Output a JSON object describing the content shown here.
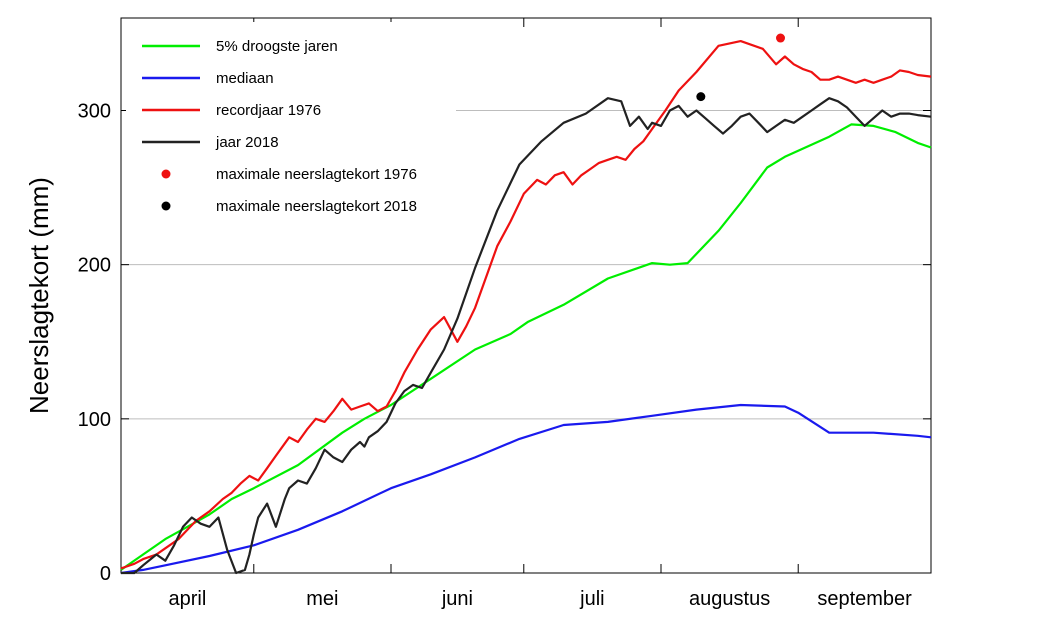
{
  "chart_data": {
    "type": "line",
    "title": "",
    "ylabel": "Neerslagtekort (mm)",
    "xlabel": "",
    "xlim": [
      0,
      183
    ],
    "ylim": [
      0,
      360
    ],
    "yticks": [
      0,
      100,
      200,
      300
    ],
    "grid": {
      "y": true,
      "x": false
    },
    "legend_placement": "top-left",
    "months": [
      {
        "label": "april",
        "start": 0,
        "end": 30
      },
      {
        "label": "mei",
        "start": 30,
        "end": 61
      },
      {
        "label": "juni",
        "start": 61,
        "end": 91
      },
      {
        "label": "juli",
        "start": 91,
        "end": 122
      },
      {
        "label": "augustus",
        "start": 122,
        "end": 153
      },
      {
        "label": "september",
        "start": 153,
        "end": 183
      }
    ],
    "series": [
      {
        "name": "5% droogste jaren",
        "color": "#00ee00",
        "x": [
          0,
          5,
          10,
          15,
          20,
          25,
          30,
          40,
          50,
          55,
          61,
          70,
          80,
          88,
          92,
          100,
          110,
          120,
          124,
          128,
          135,
          140,
          146,
          150,
          160,
          165,
          170,
          175,
          180,
          183
        ],
        "y": [
          2,
          12,
          22,
          30,
          38,
          48,
          55,
          70,
          91,
          100,
          109,
          126,
          145,
          155,
          163,
          174,
          191,
          201,
          200,
          201,
          222,
          240,
          263,
          270,
          283,
          291,
          290,
          286,
          279,
          276
        ]
      },
      {
        "name": "mediaan",
        "color": "#1a1aee",
        "x": [
          0,
          5,
          10,
          20,
          30,
          40,
          50,
          61,
          70,
          80,
          90,
          100,
          110,
          120,
          130,
          140,
          150,
          153,
          160,
          170,
          180,
          183
        ],
        "y": [
          0,
          2,
          5,
          11,
          18,
          28,
          40,
          55,
          64,
          75,
          87,
          96,
          98,
          102,
          106,
          109,
          108,
          104,
          91,
          91,
          89,
          88
        ]
      },
      {
        "name": "recordjaar 1976",
        "color": "#ee1111",
        "x": [
          0,
          3,
          5,
          8,
          10,
          13,
          15,
          17,
          20,
          23,
          25,
          27,
          29,
          31,
          33,
          35,
          38,
          40,
          42,
          44,
          46,
          48,
          50,
          52,
          54,
          56,
          58,
          60,
          62,
          64,
          67,
          70,
          73,
          76,
          78,
          80,
          81,
          83,
          85,
          88,
          91,
          94,
          96,
          98,
          100,
          102,
          104,
          106,
          108,
          110,
          112,
          114,
          116,
          118,
          120,
          123,
          126,
          130,
          135,
          140,
          145,
          148,
          150,
          152,
          154,
          156,
          158,
          160,
          162,
          164,
          166,
          168,
          170,
          172,
          174,
          176,
          178,
          180,
          183
        ],
        "y": [
          3,
          6,
          9,
          12,
          16,
          22,
          28,
          34,
          40,
          48,
          52,
          58,
          63,
          60,
          68,
          76,
          88,
          85,
          93,
          100,
          98,
          105,
          113,
          106,
          108,
          110,
          105,
          108,
          118,
          130,
          145,
          158,
          166,
          150,
          160,
          172,
          180,
          196,
          212,
          228,
          246,
          255,
          252,
          258,
          260,
          252,
          258,
          262,
          266,
          268,
          270,
          268,
          275,
          280,
          288,
          300,
          313,
          325,
          342,
          345,
          340,
          330,
          335,
          330,
          327,
          325,
          320,
          320,
          322,
          320,
          318,
          320,
          318,
          320,
          322,
          326,
          325,
          323,
          322
        ]
      },
      {
        "name": "jaar 2018",
        "color": "#222222",
        "x": [
          0,
          3,
          5,
          8,
          10,
          12,
          14,
          16,
          18,
          20,
          22,
          24,
          26,
          28,
          29,
          30,
          31,
          33,
          35,
          37,
          38,
          40,
          42,
          44,
          46,
          48,
          50,
          52,
          54,
          55,
          56,
          58,
          60,
          62,
          64,
          66,
          68,
          70,
          73,
          76,
          80,
          85,
          90,
          95,
          100,
          105,
          110,
          113,
          115,
          117,
          119,
          120,
          122,
          124,
          126,
          128,
          130,
          132,
          134,
          136,
          138,
          140,
          142,
          144,
          146,
          148,
          150,
          152,
          154,
          156,
          158,
          160,
          162,
          164,
          166,
          168,
          170,
          172,
          174,
          176,
          178,
          180,
          183
        ],
        "y": [
          0,
          0,
          5,
          12,
          8,
          18,
          30,
          36,
          32,
          30,
          36,
          15,
          0,
          2,
          12,
          25,
          36,
          45,
          30,
          48,
          55,
          60,
          58,
          68,
          80,
          75,
          72,
          80,
          85,
          82,
          88,
          92,
          98,
          110,
          118,
          122,
          120,
          130,
          145,
          165,
          198,
          235,
          265,
          280,
          292,
          298,
          308,
          306,
          290,
          296,
          288,
          292,
          290,
          300,
          303,
          296,
          300,
          295,
          290,
          285,
          290,
          296,
          298,
          292,
          286,
          290,
          294,
          292,
          296,
          300,
          304,
          308,
          306,
          302,
          296,
          290,
          295,
          300,
          296,
          298,
          298,
          297,
          296
        ]
      }
    ],
    "markers": [
      {
        "name": "maximale neerslagtekort 1976",
        "color": "#ee1111",
        "x": 149,
        "y": 347
      },
      {
        "name": "maximale neerslagtekort 2018",
        "color": "#000000",
        "x": 131,
        "y": 309
      }
    ]
  }
}
